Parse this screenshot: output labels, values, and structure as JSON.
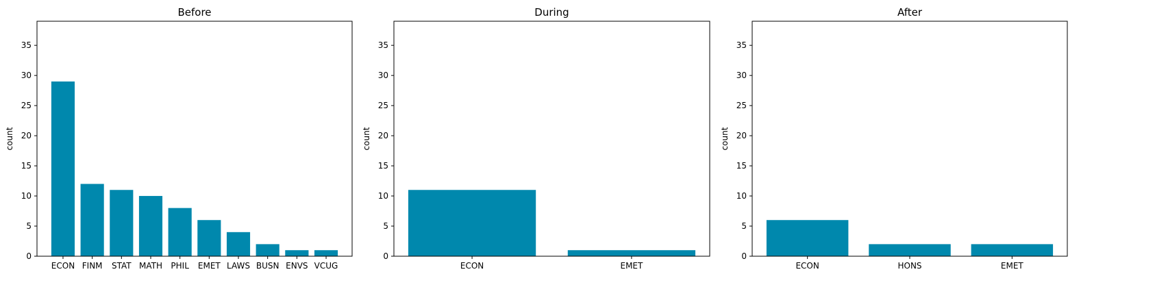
{
  "chart_data": [
    {
      "type": "bar",
      "title": "Before",
      "xlabel": "",
      "ylabel": "count",
      "categories": [
        "ECON",
        "FINM",
        "STAT",
        "MATH",
        "PHIL",
        "EMET",
        "LAWS",
        "BUSN",
        "ENVS",
        "VCUG"
      ],
      "values": [
        29,
        12,
        11,
        10,
        8,
        6,
        4,
        2,
        1,
        1
      ],
      "ylim": [
        0,
        39
      ],
      "yticks": [
        0,
        5,
        10,
        15,
        20,
        25,
        30,
        35
      ],
      "bar_color": "#0088ad",
      "grid": false
    },
    {
      "type": "bar",
      "title": "During",
      "xlabel": "",
      "ylabel": "count",
      "categories": [
        "ECON",
        "EMET"
      ],
      "values": [
        11,
        1
      ],
      "ylim": [
        0,
        39
      ],
      "yticks": [
        0,
        5,
        10,
        15,
        20,
        25,
        30,
        35
      ],
      "bar_color": "#0088ad",
      "grid": false
    },
    {
      "type": "bar",
      "title": "After",
      "xlabel": "",
      "ylabel": "count",
      "categories": [
        "ECON",
        "HONS",
        "EMET"
      ],
      "values": [
        6,
        2,
        2
      ],
      "ylim": [
        0,
        39
      ],
      "yticks": [
        0,
        5,
        10,
        15,
        20,
        25,
        30,
        35
      ],
      "bar_color": "#0088ad",
      "grid": false
    }
  ]
}
